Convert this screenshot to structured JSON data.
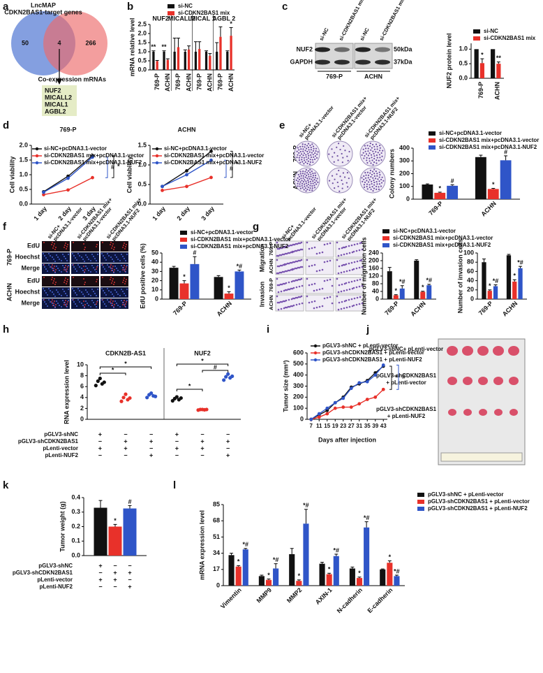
{
  "panel_labels": [
    "a",
    "b",
    "c",
    "d",
    "e",
    "f",
    "g",
    "h",
    "i",
    "j",
    "k",
    "l"
  ],
  "venn": {
    "left_title": [
      "LncMAP",
      "CDKN2BAS1-target genes"
    ],
    "left_count": 50,
    "overlap_count": 4,
    "right_count": 266,
    "right_title": "Co-expression mRNAs",
    "genes": [
      "NUF2",
      "MICALL2",
      "MICAL1",
      "AGBL2"
    ]
  },
  "blot": {
    "lanes": [
      "si-NC",
      "si-CDKN2BAS1 mix",
      "si-NC",
      "si-CDKN2BAS1 mix"
    ],
    "proteins": [
      "NUF2",
      "GAPDH"
    ],
    "sizes": [
      "50kDa",
      "37kDa"
    ],
    "cells": [
      "769-P",
      "ACHN"
    ]
  },
  "treatments": [
    [
      "si-NC+",
      "pcDNA3.1-vector"
    ],
    [
      "si-CDKN2BAS1 mix+",
      "pcDNA3.1-vector"
    ],
    [
      "si-CDKN2BAS1 mix+",
      "pcDNA3.1-NUF2"
    ]
  ],
  "plates": {
    "cell_lines": [
      "769-P",
      "ACHN"
    ]
  },
  "edu": {
    "cell_lines": [
      "769-P",
      "ACHN"
    ],
    "stains": [
      "EdU",
      "Hoechst",
      "Merge"
    ]
  },
  "transwell": {
    "assays": [
      "Migration",
      "Invasion"
    ],
    "cell_lines": [
      "769-P",
      "ACHN"
    ]
  },
  "tumors": {
    "groups": [
      [
        "pGLV3-shNC+ pLenti-vector"
      ],
      [
        "pGLV3-shCDKN2BAS1",
        "+ pLenti-vector"
      ],
      [
        "pGLV3-shCDKN2BAS1",
        "+ pLenti-NUF2"
      ]
    ]
  },
  "chart_data": [
    {
      "type": "bar",
      "ylabel": "mRNA relative level",
      "groups": [
        "NUF2",
        "MICALL2",
        "MICAL 1",
        "AGBL 2"
      ],
      "categories": [
        "769-P",
        "ACHN",
        "769-P",
        "ACHN",
        "769-P",
        "ACHN",
        "769-P",
        "ACHN"
      ],
      "series": [
        {
          "name": "si-NC",
          "color": "#111111",
          "values": [
            1,
            1,
            1,
            1,
            1,
            1,
            1,
            1
          ],
          "errors": [
            0.05,
            0.05,
            0.75,
            0.1,
            0.55,
            0.05,
            0.5,
            0.05
          ],
          "marks": [
            "**",
            "**",
            null,
            null,
            null,
            null,
            null,
            null
          ]
        },
        {
          "name": "si-CDKN2BAS1 mix",
          "color": "#e8312a",
          "values": [
            0.48,
            0.55,
            1.25,
            1.12,
            1.15,
            0.78,
            1.82,
            1.88
          ],
          "errors": [
            0.04,
            0.06,
            0.5,
            0.2,
            0.4,
            0.12,
            0.55,
            0.45
          ],
          "marks": [
            null,
            null,
            null,
            null,
            null,
            null,
            null,
            "*"
          ]
        }
      ],
      "mark_color": "#111111",
      "ylim": [
        0,
        2.5
      ],
      "yticks": [
        {
          "value": 0,
          "label": "0.0"
        },
        {
          "value": 0.5,
          "label": "0.5"
        },
        {
          "value": 1,
          "label": "1.0"
        },
        {
          "value": 1.5,
          "label": "1.5"
        },
        {
          "value": 2,
          "label": "2.0"
        },
        {
          "value": 2.5,
          "label": "2.5"
        }
      ]
    },
    {
      "type": "bar",
      "ylabel": "NUF2 protein level",
      "categories": [
        "769-P",
        "ACHN"
      ],
      "series": [
        {
          "name": "si-NC",
          "color": "#111111",
          "values": [
            1,
            1
          ]
        },
        {
          "name": "si-CDKN2BAS1 mix",
          "color": "#e8312a",
          "values": [
            0.52,
            0.5
          ],
          "errors": [
            0.15,
            0.06
          ],
          "marks": [
            "*",
            "**"
          ]
        }
      ],
      "mark_color": "#111111",
      "ylim": [
        0,
        1.2
      ],
      "yticks": [
        {
          "value": 0,
          "label": "0.0"
        },
        {
          "value": 0.5,
          "label": "0.5"
        },
        {
          "value": 1,
          "label": "1.0"
        }
      ]
    },
    {
      "type": "line",
      "title": "769-P",
      "ylabel": "Cell viability",
      "categories": [
        "1 day",
        "2 day",
        "3 day"
      ],
      "series": [
        {
          "name": "si-NC+pcDNA3.1-vector",
          "color": "#111111",
          "values": [
            0.42,
            0.95,
            1.65
          ]
        },
        {
          "name": "si-CDKN2BAS1 mix+pcDNA3.1-vector",
          "color": "#e8312a",
          "values": [
            0.32,
            0.48,
            0.9
          ]
        },
        {
          "name": "si-CDKN2BAS1 mix+pcDNA3.1-NUF2",
          "color": "#2f55c8",
          "values": [
            0.4,
            0.88,
            1.6
          ]
        }
      ],
      "annotations": [
        "#",
        "*"
      ],
      "ylim": [
        0,
        2
      ],
      "yticks": [
        {
          "value": 0,
          "label": "0.0"
        },
        {
          "value": 0.5,
          "label": "0.5"
        },
        {
          "value": 1,
          "label": "1.0"
        },
        {
          "value": 1.5,
          "label": "1.5"
        },
        {
          "value": 2,
          "label": "2.0"
        }
      ]
    },
    {
      "type": "line",
      "title": "ACHN",
      "ylabel": "Cell viability",
      "categories": [
        "1 day",
        "2 day",
        "3 day"
      ],
      "series": [
        {
          "name": "si-NC+pcDNA3.1-vector",
          "color": "#111111",
          "values": [
            0.45,
            0.85,
            1.35
          ]
        },
        {
          "name": "si-CDKN2BAS1 mix+pcDNA3.1-vector",
          "color": "#e8312a",
          "values": [
            0.35,
            0.45,
            0.68
          ]
        },
        {
          "name": "si-CDKN2BAS1 mix+pcDNA3.1-NUF2",
          "color": "#2f55c8",
          "values": [
            0.45,
            0.75,
            1.12
          ]
        }
      ],
      "annotations": [
        "#",
        "*"
      ],
      "ylim": [
        0,
        1.5
      ],
      "yticks": [
        {
          "value": 0,
          "label": "0.0"
        },
        {
          "value": 0.5,
          "label": "0.5"
        },
        {
          "value": 1,
          "label": "1.0"
        },
        {
          "value": 1.5,
          "label": "1.5"
        }
      ]
    },
    {
      "type": "bar",
      "ylabel": "Colony numbers",
      "categories": [
        "769-P",
        "ACHN"
      ],
      "series": [
        {
          "name": "si-NC+pcDNA3.1-vector",
          "color": "#111111",
          "values": [
            115,
            330
          ],
          "errors": [
            5,
            15
          ]
        },
        {
          "name": "si-CDKN2BAS1 mix+pcDNA3.1-vector",
          "color": "#e8312a",
          "values": [
            50,
            80
          ],
          "errors": [
            5,
            5
          ],
          "marks": [
            "*",
            "*"
          ]
        },
        {
          "name": "si-CDKN2BAS1 mix+pcDNA3.1-NUF2",
          "color": "#2f55c8",
          "values": [
            105,
            305
          ],
          "errors": [
            8,
            35
          ],
          "marks": [
            "#",
            "#"
          ]
        }
      ],
      "ylim": [
        0,
        400
      ],
      "yticks": [
        0,
        100,
        200,
        300,
        400
      ]
    },
    {
      "type": "bar",
      "ylabel": "EdU positive cells (%)",
      "categories": [
        "769-P",
        "ACHN"
      ],
      "series": [
        {
          "name": "si-NC+pcDNA3.1-vector",
          "color": "#111111",
          "values": [
            34,
            24
          ],
          "errors": [
            1.5,
            1.5
          ]
        },
        {
          "name": "si-CDKN2BAS1 mix+pcDNA3.1-vector",
          "color": "#e8312a",
          "values": [
            17,
            6
          ],
          "errors": [
            3,
            2
          ],
          "marks": [
            "*",
            "*"
          ]
        },
        {
          "name": "si-CDKN2BAS1 mix+pcDNA3.1-NUF2",
          "color": "#2f55c8",
          "values": [
            38,
            30
          ],
          "errors": [
            8,
            1.5
          ],
          "marks": [
            "#",
            "*#"
          ]
        }
      ],
      "ylim": [
        0,
        50
      ],
      "yticks": [
        0,
        10,
        20,
        30,
        40,
        50
      ]
    },
    {
      "type": "bar",
      "ylabel": "Number of migration cells",
      "categories": [
        "769-P",
        "ACHN"
      ],
      "series": [
        {
          "name": "si-NC+pcDNA3.1-vector",
          "color": "#111111",
          "values": [
            145,
            200
          ],
          "errors": [
            20,
            5
          ]
        },
        {
          "name": "si-CDKN2BAS1 mix+pcDNA3.1-vector",
          "color": "#e8312a",
          "values": [
            20,
            38
          ],
          "errors": [
            3,
            3
          ],
          "marks": [
            "*",
            "*"
          ]
        },
        {
          "name": "si-CDKN2BAS1 mix+pcDNA3.1-NUF2",
          "color": "#2f55c8",
          "values": [
            55,
            72
          ],
          "errors": [
            15,
            5
          ],
          "marks": [
            "*#",
            "*#"
          ]
        }
      ],
      "ylim": [
        0,
        240
      ],
      "yticks": [
        0,
        40,
        80,
        120,
        160,
        200,
        240
      ]
    },
    {
      "type": "bar",
      "ylabel": "Number of invasion cells",
      "categories": [
        "769-P",
        "ACHN"
      ],
      "series": [
        {
          "color": "#111111",
          "values": [
            80,
            95
          ],
          "errors": [
            7,
            2
          ]
        },
        {
          "color": "#e8312a",
          "values": [
            18,
            38
          ],
          "errors": [
            2,
            4
          ],
          "marks": [
            "*",
            "*"
          ]
        },
        {
          "color": "#2f55c8",
          "values": [
            28,
            67
          ],
          "errors": [
            3,
            4
          ],
          "marks": [
            "*#",
            "*#"
          ]
        }
      ],
      "ylim": [
        0,
        100
      ],
      "yticks": [
        0,
        20,
        40,
        60,
        80,
        100
      ]
    },
    {
      "type": "strip",
      "ylabel": "RNA expression level",
      "groups": [
        {
          "title": "CDKN2B-AS1",
          "series": [
            {
              "color": "#111111",
              "values": [
                6.2,
                7.0,
                7.5,
                6.5,
                6.8
              ]
            },
            {
              "color": "#e8312a",
              "values": [
                3.3,
                4.0,
                4.6,
                3.6,
                3.9
              ]
            },
            {
              "color": "#2f55c8",
              "values": [
                4.0,
                4.5,
                4.8,
                4.3,
                4.2
              ]
            }
          ],
          "annotations": [
            "*",
            "*"
          ]
        },
        {
          "title": "NUF2",
          "series": [
            {
              "color": "#111111",
              "values": [
                3.4,
                3.8,
                4.1,
                3.6,
                3.9
              ]
            },
            {
              "color": "#e8312a",
              "values": [
                1.7,
                1.8,
                1.8,
                1.75,
                1.8
              ]
            },
            {
              "color": "#2f55c8",
              "values": [
                7.2,
                7.8,
                8.3,
                7.6,
                7.9
              ]
            }
          ],
          "annotations": [
            "*",
            "*",
            "#"
          ]
        }
      ],
      "ylim": [
        0,
        10
      ],
      "yticks": [
        0,
        2,
        4,
        6,
        8,
        10
      ],
      "conditions": {
        "rows": [
          "pGLV3-shNC",
          "pGLV3-shCDKN2BAS1",
          "pLenti-vector",
          "pLenti-NUF2"
        ],
        "signs": [
          [
            "+",
            "−",
            "−",
            "+",
            "−",
            "−"
          ],
          [
            "−",
            "+",
            "+",
            "−",
            "+",
            "+"
          ],
          [
            "+",
            "+",
            "−",
            "+",
            "+",
            "−"
          ],
          [
            "−",
            "−",
            "+",
            "−",
            "−",
            "+"
          ]
        ]
      }
    },
    {
      "type": "line",
      "ylabel": "Tumor size (mm³)",
      "xlabel": "Days after injection",
      "x": [
        7,
        11,
        15,
        19,
        23,
        27,
        31,
        35,
        39,
        43
      ],
      "xlim": [
        5,
        45
      ],
      "xticks": [
        7,
        11,
        15,
        19,
        23,
        27,
        31,
        35,
        39,
        43
      ],
      "series": [
        {
          "name": "pGLV3-shNC + pLenti-vector",
          "color": "#111111",
          "values": [
            0,
            40,
            80,
            150,
            200,
            290,
            320,
            350,
            420,
            480
          ]
        },
        {
          "name": "pGLV3-shCDKN2BAS1 + pLenti-vector",
          "color": "#e8312a",
          "values": [
            0,
            20,
            50,
            100,
            110,
            110,
            140,
            180,
            200,
            270
          ]
        },
        {
          "name": "pGLV3-shCDKN2BAS1 + pLenti-NUF2",
          "color": "#2f55c8",
          "values": [
            0,
            50,
            100,
            150,
            190,
            280,
            330,
            340,
            400,
            490
          ]
        }
      ],
      "annotations": [
        "*",
        "#"
      ],
      "ylim": [
        0,
        600
      ],
      "yticks": [
        0,
        100,
        200,
        300,
        400,
        500,
        600
      ]
    },
    {
      "type": "bar",
      "ylabel": "Tumor weight (g)",
      "series": [
        {
          "color": "#111111",
          "values": [
            0.33
          ],
          "errors": [
            0.05
          ]
        },
        {
          "color": "#e8312a",
          "values": [
            0.2
          ],
          "errors": [
            0.015
          ],
          "marks": [
            "*"
          ]
        },
        {
          "color": "#2f55c8",
          "values": [
            0.325
          ],
          "errors": [
            0.02
          ],
          "marks": [
            "#"
          ]
        }
      ],
      "ylim": [
        0,
        0.4
      ],
      "yticks": [
        {
          "value": 0,
          "label": "0.0"
        },
        {
          "value": 0.1,
          "label": "0.1"
        },
        {
          "value": 0.2,
          "label": "0.2"
        },
        {
          "value": 0.3,
          "label": "0.3"
        },
        {
          "value": 0.4,
          "label": "0.4"
        }
      ],
      "conditions": {
        "rows": [
          "pGLV3-shNC",
          "pGLV3-shCDKN2BAS1",
          "pLenti-vector",
          "pLenti-NUF2"
        ],
        "signs": [
          [
            "+",
            "−",
            "−"
          ],
          [
            "−",
            "+",
            "+"
          ],
          [
            "+",
            "+",
            "−"
          ],
          [
            "−",
            "−",
            "+"
          ]
        ]
      }
    },
    {
      "type": "bar",
      "ylabel": "mRNA expression level",
      "categories": [
        "Vimentin",
        "MMP9",
        "MMP2",
        "AXIN-1",
        "N-cadherin",
        "E-cadherin"
      ],
      "series": [
        {
          "name": "pGLV3-shNC + pLenti-vector",
          "color": "#111111",
          "values": [
            32,
            10,
            33,
            23,
            18,
            17
          ],
          "errors": [
            2,
            1,
            6,
            1.5,
            1.5,
            0.5
          ]
        },
        {
          "name": "pGLV3-shCDKN2BAS1 + pLenti-vector",
          "color": "#e8312a",
          "values": [
            20,
            6,
            5,
            12,
            8,
            24
          ],
          "errors": [
            1,
            1,
            1,
            1,
            1,
            2
          ],
          "marks": [
            "*",
            "*",
            "*",
            "*",
            "*",
            "*"
          ]
        },
        {
          "name": "pGLV3-shCDKN2BAS1 + pLenti-NUF2",
          "color": "#2f55c8",
          "values": [
            38,
            18,
            65,
            31,
            61,
            10
          ],
          "errors": [
            1,
            5,
            15,
            2,
            6,
            1
          ],
          "marks": [
            "*#",
            "*#",
            "*#",
            "*#",
            "*#",
            "*#"
          ]
        }
      ],
      "ylim": [
        0,
        85
      ],
      "yticks": [
        0,
        17,
        34,
        51,
        68,
        85
      ]
    }
  ]
}
